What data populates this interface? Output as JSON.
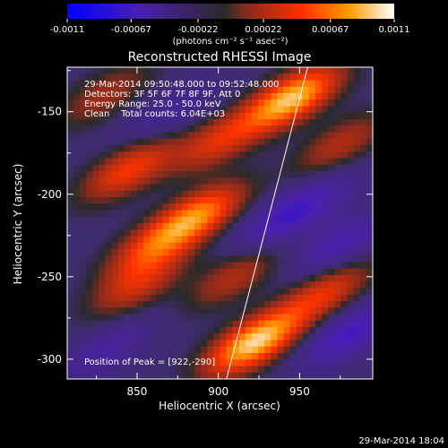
{
  "window": {
    "footer_timestamp": "29-Mar-2014 18:04"
  },
  "colorbar": {
    "ticks": [
      "-0.0011",
      "-0.00067",
      "-0.00022",
      "0.00022",
      "0.00067",
      "0.0011"
    ],
    "range": [
      -0.0011,
      0.0011
    ],
    "units_label": "(photons cm⁻² s⁻¹ asec⁻²)",
    "colormap": [
      "#0000ff",
      "#4b1fb0",
      "#2a2a2a",
      "#8a2a1c",
      "#ff3300",
      "#ff9900",
      "#ffffff"
    ]
  },
  "chart_data": {
    "type": "heatmap",
    "title": "Reconstructed RHESSI Image",
    "xlabel": "Heliocentric X (arcsec)",
    "ylabel": "Heliocentric Y (arcsec)",
    "xlim": [
      807,
      995
    ],
    "ylim": [
      -312,
      -123
    ],
    "x_ticks": [
      850,
      900,
      950
    ],
    "y_ticks": [
      -150,
      -200,
      -250,
      -300
    ],
    "annotations": [
      "29-Mar-2014 09:50:48.000 to 09:52:48.000",
      "Detectors: 3F 5F 6F 7F 8F 9F, Att 0",
      "Energy Range: 25.0 - 50.0 keV",
      "Clean    Total counts: 6.04E+03",
      "Position of Peak = [922,-290]"
    ],
    "peak": {
      "x": 922,
      "y": -290
    },
    "total_counts": 6040,
    "energy_range_kev": [
      25.0,
      50.0
    ],
    "limb_line": [
      [
        905,
        -312
      ],
      [
        955,
        -123
      ]
    ],
    "blobs": [
      {
        "x": 922,
        "y": -290,
        "v": 1.0
      },
      {
        "x": 945,
        "y": -142,
        "v": 0.95
      },
      {
        "x": 887,
        "y": -213,
        "v": 0.72
      },
      {
        "x": 845,
        "y": -185,
        "v": 0.55
      },
      {
        "x": 860,
        "y": -232,
        "v": 0.5
      },
      {
        "x": 900,
        "y": -168,
        "v": 0.45
      },
      {
        "x": 965,
        "y": -260,
        "v": 0.48
      },
      {
        "x": 850,
        "y": -255,
        "v": 0.42
      },
      {
        "x": 910,
        "y": -250,
        "v": 0.35
      },
      {
        "x": 975,
        "y": -170,
        "v": 0.35
      },
      {
        "x": 830,
        "y": -140,
        "v": 0.3
      },
      {
        "x": 940,
        "y": -215,
        "v": -0.45
      },
      {
        "x": 975,
        "y": -230,
        "v": -0.4
      },
      {
        "x": 980,
        "y": -285,
        "v": -0.5
      },
      {
        "x": 830,
        "y": -295,
        "v": -0.3
      },
      {
        "x": 870,
        "y": -150,
        "v": -0.25
      },
      {
        "x": 965,
        "y": -200,
        "v": -0.2
      }
    ]
  }
}
